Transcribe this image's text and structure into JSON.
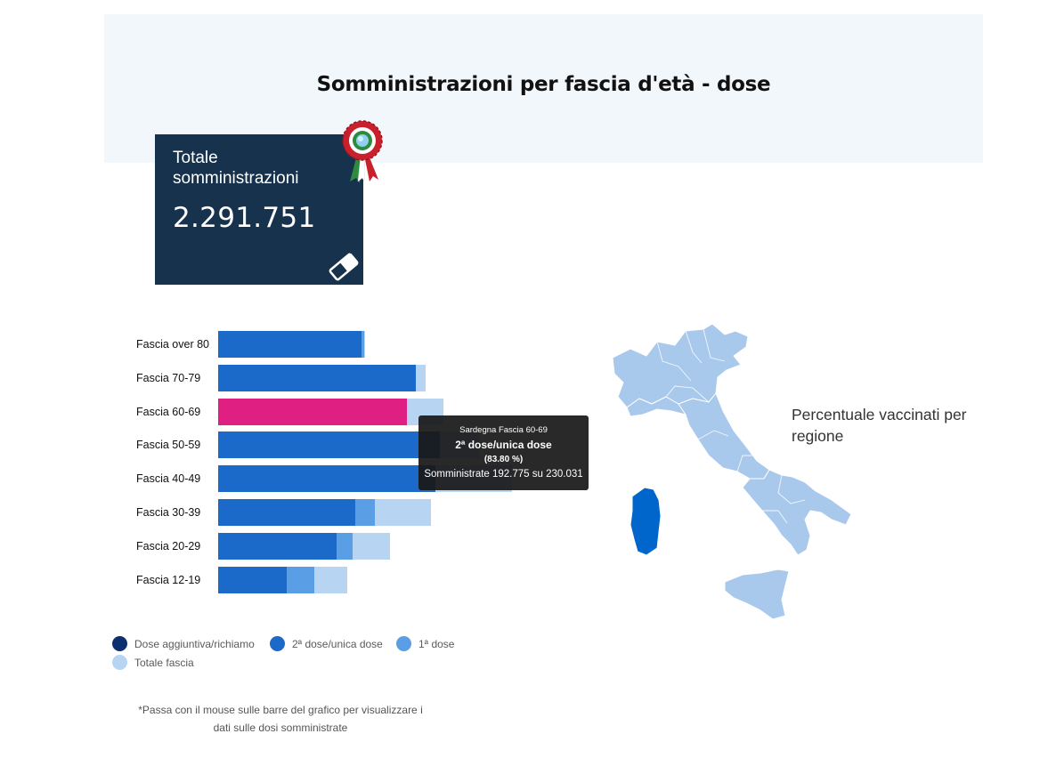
{
  "header": {
    "title": "Somministrazioni per fascia d'età - dose"
  },
  "total_card": {
    "label": "Totale somministrazioni",
    "value": "2.291.751",
    "reset_icon": "eraser-icon",
    "badge_icon": "italian-cockade-icon"
  },
  "colors": {
    "booster": "#0d2f6e",
    "second_dose": "#1b6ac9",
    "first_dose": "#5a9ee5",
    "total": "#b7d4f3",
    "highlight": "#e01f82",
    "selected_region": "#0066cc",
    "region": "#a9c9ec"
  },
  "chart_data": {
    "type": "bar",
    "orientation": "horizontal",
    "categories": [
      "Fascia over 80",
      "Fascia 70-79",
      "Fascia 60-69",
      "Fascia 50-59",
      "Fascia 40-49",
      "Fascia 30-39",
      "Fascia 20-29",
      "Fascia 12-19"
    ],
    "series": [
      {
        "name": "Dose aggiuntiva/richiamo",
        "values": [
          0,
          0,
          0,
          0,
          0,
          0,
          0,
          0
        ]
      },
      {
        "name": "2ª dose/unica dose",
        "values": [
          146000,
          202000,
          192775,
          226000,
          222000,
          140000,
          121000,
          70000
        ]
      },
      {
        "name": "1ª dose",
        "values": [
          3000,
          0,
          0,
          0,
          0,
          20000,
          16000,
          28000
        ]
      },
      {
        "name": "Totale fascia",
        "values": [
          150000,
          212000,
          230031,
          266000,
          300000,
          217000,
          175000,
          132000
        ]
      }
    ],
    "highlighted_category": "Fascia 60-69",
    "xlim": [
      0,
      300000
    ]
  },
  "tooltip": {
    "title": "Sardegna Fascia 60-69",
    "dose": "2ª dose/unica dose",
    "percent": "(83.80 %)",
    "detail": "Somministrate 192.775 su 230.031"
  },
  "legend": {
    "items": [
      {
        "label": "Dose aggiuntiva/richiamo"
      },
      {
        "label": "2ª dose/unica dose"
      },
      {
        "label": "1ª dose"
      },
      {
        "label": "Totale fascia"
      }
    ]
  },
  "hint": "*Passa con il mouse sulle barre del grafico per visualizzare i dati sulle dosi somministrate",
  "map": {
    "caption": "Percentuale vaccinati per regione",
    "selected_region": "Sardegna"
  }
}
